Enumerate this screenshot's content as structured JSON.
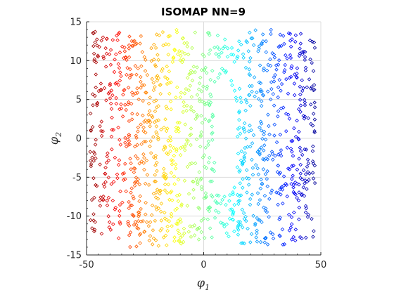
{
  "chart_data": {
    "type": "scatter",
    "title": "ISOMAP NN=9",
    "xlabel": {
      "base": "φ",
      "sub": "1"
    },
    "ylabel": {
      "base": "φ",
      "sub": "2"
    },
    "xlim": [
      -50,
      50
    ],
    "ylim": [
      -15,
      15
    ],
    "xticks": [
      -50,
      0,
      50
    ],
    "yticks": [
      -15,
      -10,
      -5,
      0,
      5,
      10,
      15
    ],
    "xtick_labels": [
      "-50",
      "0",
      "50"
    ],
    "ytick_labels": [
      "-15",
      "-10",
      "-5",
      "0",
      "5",
      "10",
      "15"
    ],
    "grid": true,
    "marker": "diamond",
    "colormap": "jet",
    "color_by": "x",
    "point_count": 1200,
    "cluster": {
      "x_range": [
        -50,
        50
      ],
      "y_range": [
        -14,
        14
      ],
      "hole_center": [
        9,
        0.5
      ],
      "hole_radius": [
        5,
        7.5
      ]
    }
  }
}
